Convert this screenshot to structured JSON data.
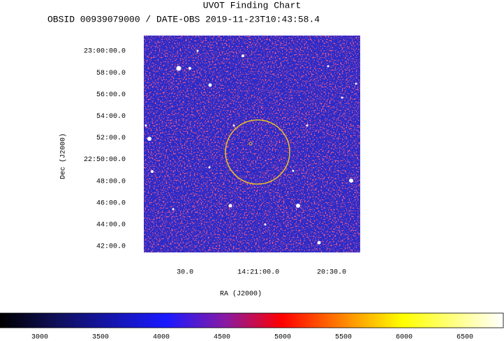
{
  "chart_data": {
    "type": "image",
    "title": "UVOT Finding Chart",
    "subtitle": "OBSID 00939079000 / DATE-OBS 2019-11-23T10:43:58.4",
    "x_label": "RA (J2000)",
    "y_label": "Dec (J2000)",
    "xlim": [
      106.9,
      18.3
    ],
    "xticks": [
      {
        "value": 90,
        "label": "30.0"
      },
      {
        "value": 60,
        "label": "14:21:00.0"
      },
      {
        "value": 30,
        "label": "20:30.0"
      }
    ],
    "ylim": [
      22.6903,
      23.0237
    ],
    "yticks": [
      {
        "value": 23.0,
        "label": "23:00:00.0"
      },
      {
        "value": 22.9667,
        "label": "58:00.0"
      },
      {
        "value": 22.9333,
        "label": "56:00.0"
      },
      {
        "value": 22.9,
        "label": "54:00.0"
      },
      {
        "value": 22.8667,
        "label": "52:00.0"
      },
      {
        "value": 22.8333,
        "label": "22:50:00.0"
      },
      {
        "value": 22.8,
        "label": "48:00.0"
      },
      {
        "value": 22.7667,
        "label": "46:00.0"
      },
      {
        "value": 22.7333,
        "label": "44:00.0"
      },
      {
        "value": 22.7,
        "label": "42:00.0"
      }
    ],
    "colorbar_lim": [
      2672,
      6822
    ],
    "colorbar_ticks": [
      3000,
      3500,
      4000,
      4500,
      5000,
      5500,
      6000,
      6500
    ]
  }
}
